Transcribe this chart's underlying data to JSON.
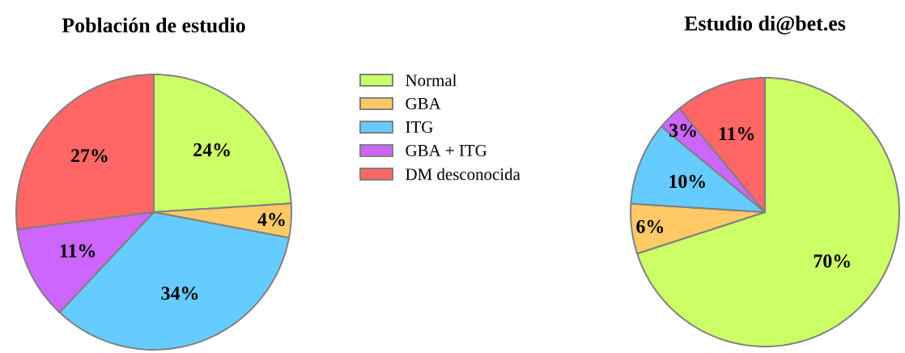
{
  "chart_data": [
    {
      "type": "pie",
      "title": "Población de estudio",
      "categories": [
        "Normal",
        "GBA",
        "ITG",
        "GBA + ITG",
        "DM desconocida"
      ],
      "values": [
        24,
        4,
        34,
        11,
        27
      ],
      "value_labels": [
        "24%",
        "4%",
        "34%",
        "11%",
        "27%"
      ],
      "colors": [
        "#ccff66",
        "#ffc966",
        "#66ccff",
        "#cc66ff",
        "#ff6666"
      ],
      "legend": "right"
    },
    {
      "type": "pie",
      "title": "Estudio di@bet.es",
      "categories": [
        null,
        null,
        null,
        null,
        null
      ],
      "values": [
        70,
        6,
        10,
        3,
        11
      ],
      "value_labels": [
        "70%",
        "6%",
        "10%",
        "3%",
        "11%"
      ],
      "colors": [
        "#ccff66",
        "#ffc966",
        "#66ccff",
        "#cc66ff",
        "#ff6666"
      ]
    }
  ]
}
